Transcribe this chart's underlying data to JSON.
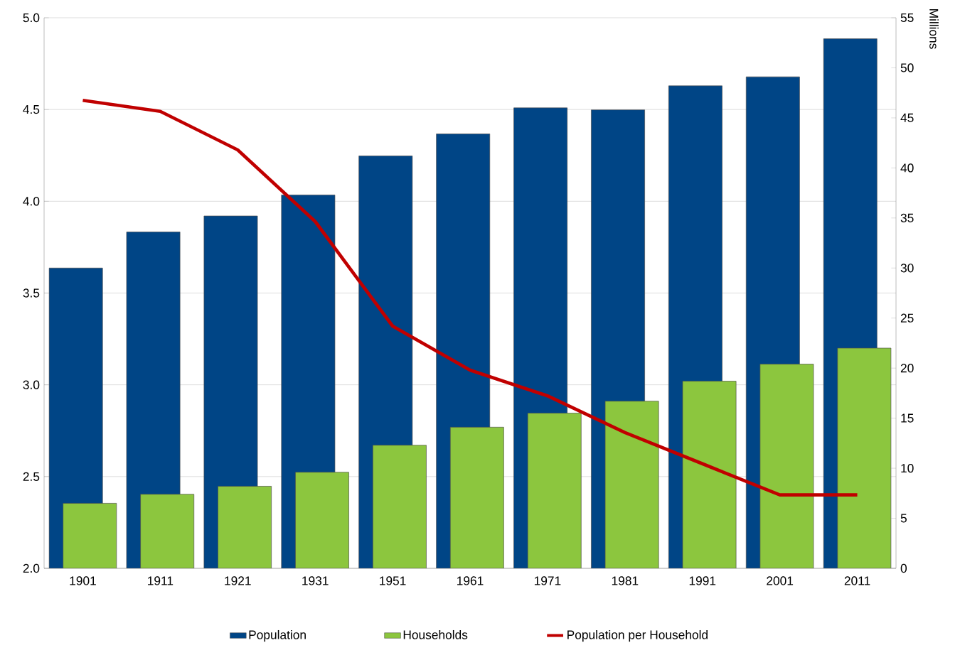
{
  "chart_data": {
    "type": "bar",
    "categories": [
      "1901",
      "1911",
      "1921",
      "1931",
      "1951",
      "1961",
      "1971",
      "1981",
      "1991",
      "2001",
      "2011"
    ],
    "series": [
      {
        "name": "Population",
        "axis": "y2",
        "color": "#004586",
        "values": [
          30.0,
          33.6,
          35.2,
          37.3,
          41.2,
          43.4,
          46.0,
          45.8,
          48.2,
          49.1,
          52.9
        ]
      },
      {
        "name": "Households",
        "axis": "y2",
        "color": "#8cc63e",
        "values": [
          6.5,
          7.4,
          8.2,
          9.6,
          12.3,
          14.1,
          15.5,
          16.7,
          18.7,
          20.4,
          22.0
        ]
      },
      {
        "name": "Population per Household",
        "type": "line",
        "axis": "y",
        "color": "#c00000",
        "values": [
          4.55,
          4.49,
          4.28,
          3.89,
          3.32,
          3.08,
          2.94,
          2.74,
          2.57,
          2.4,
          2.4
        ]
      }
    ],
    "ylim": [
      2,
      5
    ],
    "yticks": [
      {
        "value": 2,
        "label": "2.0"
      },
      2.5,
      {
        "value": 3,
        "label": "3.0"
      },
      3.5,
      {
        "value": 4,
        "label": "4.0"
      },
      4.5,
      {
        "value": 5,
        "label": "5.0"
      }
    ],
    "y2lim": [
      0,
      55
    ],
    "y2ticks": [
      0,
      5,
      10,
      15,
      20,
      25,
      30,
      35,
      40,
      45,
      50,
      55
    ],
    "y2label": "Millions",
    "grid": "y",
    "legend": "bottom"
  }
}
